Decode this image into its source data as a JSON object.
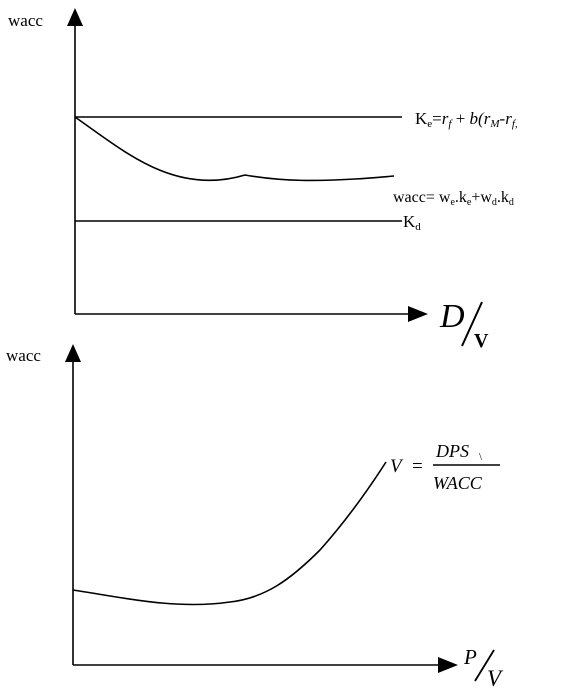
{
  "top_graph": {
    "y_axis_label": "wacc",
    "x_axis": {
      "letter": "D",
      "denominator": "V"
    },
    "lines": {
      "ke": {
        "prefix": "K",
        "prefix_sub": "e",
        "eq": "=",
        "rf": "r",
        "rf_sub": "f",
        "plus": " + ",
        "b": "b",
        "paren_open": "(",
        "rm": "r",
        "rm_sub": "M",
        "minus": "-",
        "rf2": "r",
        "rf2_sub": "f,"
      },
      "wacc": {
        "prefix": "wacc= w",
        "we_sub": "e",
        "dot_k": ".k",
        "ke_sub": "e",
        "plus_w": "+w",
        "wd_sub": "d",
        "dot_k2": ".k",
        "kd_sub": "d"
      },
      "kd": {
        "prefix": "K",
        "prefix_sub": "d"
      }
    }
  },
  "bottom_graph": {
    "y_axis_label": "wacc",
    "x_axis": {
      "numerator": "P",
      "denominator": "V"
    },
    "formula": {
      "lhs": "V",
      "eq": "=",
      "numerator": "DPS",
      "numerator_sub": "\\",
      "denominator": "WACC"
    }
  }
}
